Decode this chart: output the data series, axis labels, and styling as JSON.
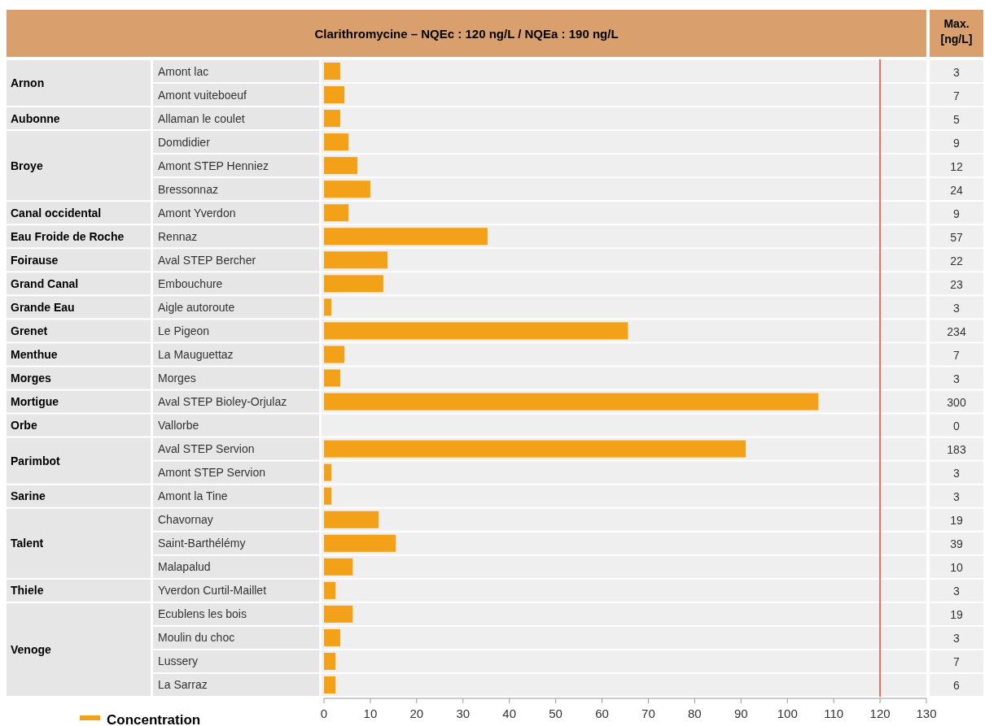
{
  "chart_data": {
    "type": "bar",
    "orientation": "horizontal",
    "title": "Clarithromycine – NQEc : 120 ng/L / NQEa : 190 ng/L",
    "y2label": "Max. [ng/L]",
    "categories": [
      "Amont lac",
      "Amont vuiteboeuf",
      "Allaman le coulet",
      "Domdidier",
      "Amont STEP Henniez",
      "Bressonnaz",
      "Amont Yverdon",
      "Rennaz",
      "Aval STEP Bercher",
      "Embouchure",
      "Aigle autoroute",
      "Le Pigeon",
      "La Mauguettaz",
      "Morges",
      "Aval STEP Bioley-Orjulaz",
      "Vallorbe",
      "Aval STEP Servion",
      "Amont STEP Servion",
      "Amont la Tine",
      "Chavornay",
      "Saint-Barthélémy",
      "Malapalud",
      "Yverdon Curtil-Maillet",
      "Ecublens les bois",
      "Moulin du choc",
      "Lussery",
      "La Sarraz"
    ],
    "series": [
      {
        "name": "Concentration",
        "color": "#f4a11a",
        "values": [
          3.5,
          4.4,
          3.5,
          5.3,
          7.2,
          10,
          5.3,
          35.3,
          13.7,
          12.8,
          1.6,
          65.6,
          4.4,
          3.5,
          106.7,
          0,
          91,
          1.6,
          1.6,
          11.8,
          15.5,
          6.2,
          2.5,
          6.2,
          3.5,
          2.5,
          2.5
        ]
      }
    ],
    "xlim": [
      0,
      130
    ],
    "xticks": [
      0,
      10,
      20,
      30,
      40,
      50,
      60,
      70,
      80,
      90,
      100,
      110,
      120,
      130
    ],
    "ref_lines": [
      {
        "axis": "x",
        "value": 120,
        "color": "#e0705a"
      }
    ],
    "legend": "bottom left",
    "grid": false,
    "annotations": [
      {
        "text": "Arnon"
      },
      "3",
      "7",
      {
        "text": "Aubonne"
      },
      "5",
      {
        "text": "Broye"
      },
      "9",
      "12",
      "24",
      {
        "text": "Canal occidental"
      },
      "9",
      {
        "text": "Eau Froide de Roche"
      },
      "57",
      {
        "text": "Foirause"
      },
      "22",
      {
        "text": "Grand Canal"
      },
      "23",
      {
        "text": "Grande Eau"
      },
      "3",
      {
        "text": "Grenet"
      },
      "234",
      {
        "text": "Menthue"
      },
      "7",
      {
        "text": "Morges"
      },
      "3",
      {
        "text": "Mortigue"
      },
      "300",
      {
        "text": "Orbe"
      },
      "0",
      {
        "text": "Parimbot"
      },
      "183",
      "3",
      {
        "text": "Sarine"
      },
      "3",
      {
        "text": "Talent"
      },
      "19",
      "39",
      "10",
      {
        "text": "Thiele"
      },
      "3",
      {
        "text": "Venoge"
      },
      "19",
      "3",
      "7",
      "6"
    ]
  }
}
